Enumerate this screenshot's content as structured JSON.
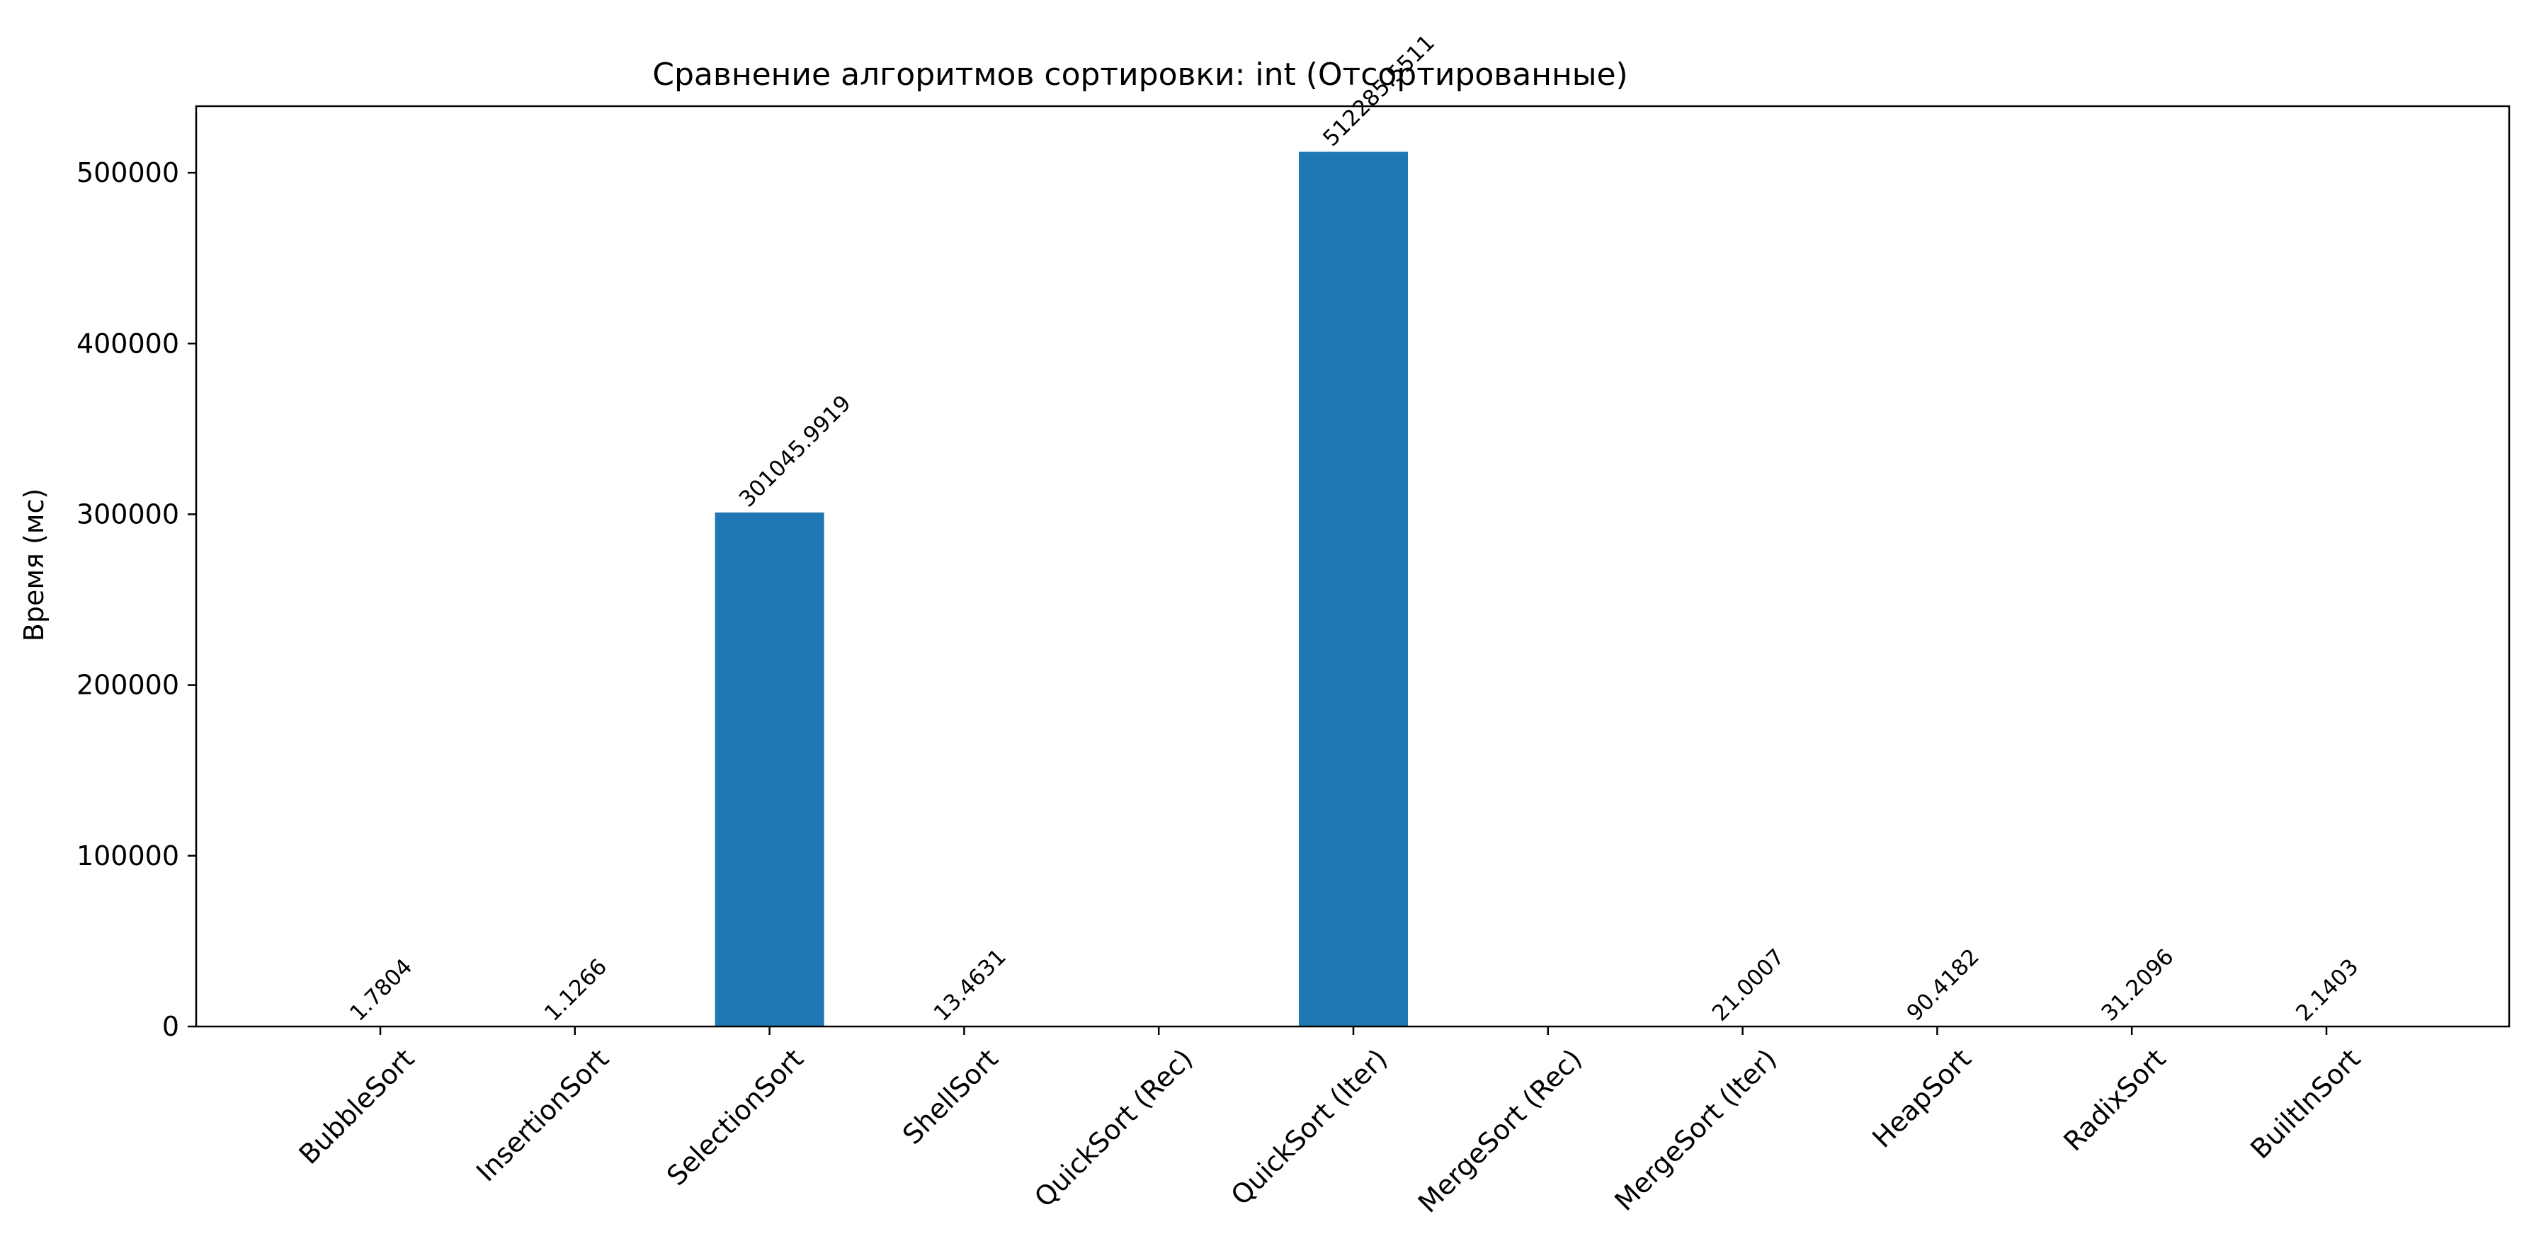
{
  "chart_data": {
    "type": "bar",
    "title": "Сравнение алгоритмов сортировки: int (Отсортированные)",
    "xlabel": "",
    "ylabel": "Время (мс)",
    "categories": [
      "BubbleSort",
      "InsertionSort",
      "SelectionSort",
      "ShellSort",
      "QuickSort (Rec)",
      "QuickSort (Iter)",
      "MergeSort (Rec)",
      "MergeSort (Iter)",
      "HeapSort",
      "RadixSort",
      "BuiltInSort"
    ],
    "values": [
      1.7804,
      1.1266,
      301045.9919,
      13.4631,
      null,
      512285.5511,
      null,
      21.0007,
      90.4182,
      31.2096,
      2.1403
    ],
    "value_labels": [
      "1.7804",
      "1.1266",
      "301045.9919",
      "13.4631",
      "",
      "512285.5511",
      "",
      "21.0007",
      "90.4182",
      "31.2096",
      "2.1403"
    ],
    "ylim": [
      0,
      539000
    ],
    "yticks": [
      0,
      100000,
      200000,
      300000,
      400000,
      500000
    ],
    "bar_color": "#1f77b4",
    "grid": false,
    "legend": "none"
  }
}
